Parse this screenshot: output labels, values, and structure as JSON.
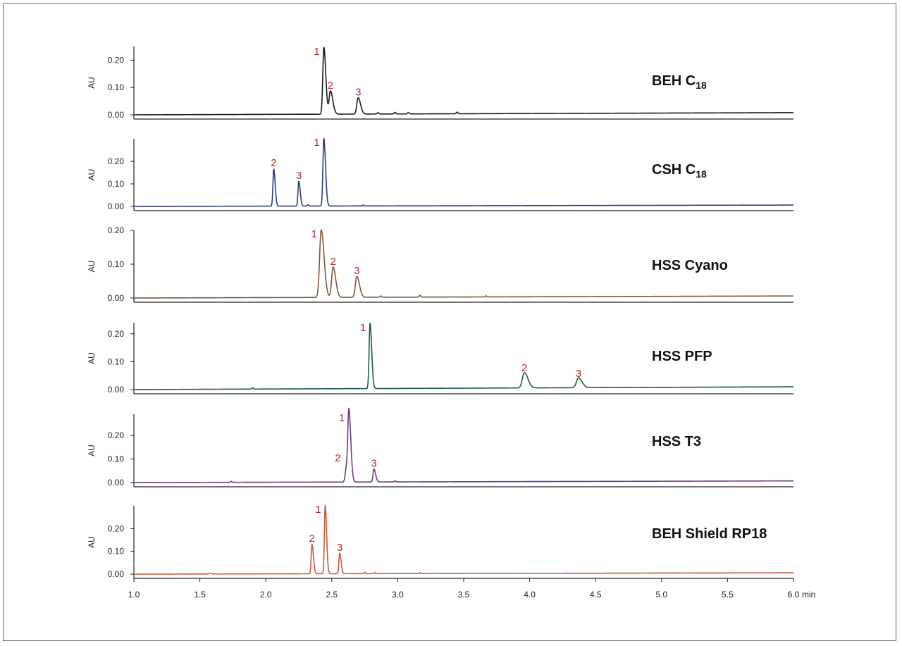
{
  "chart_data": {
    "type": "line",
    "xlim": [
      1.0,
      6.0
    ],
    "x_ticks": [
      "1.0",
      "1.5",
      "2.0",
      "2.5",
      "3.0",
      "3.5",
      "4.0",
      "4.5",
      "5.0",
      "5.5",
      "6.0"
    ],
    "x_unit": "min",
    "ylabel": "AU",
    "y_ticks": [
      "0.00",
      "0.10",
      "0.20"
    ],
    "peak_label_color": "#b3272f",
    "panels": [
      {
        "name": "BEH C18",
        "name_main": "BEH C",
        "name_sub": "18",
        "color": "#1a1a1a",
        "ymax": 0.25,
        "baseline_drift": 0.008,
        "peaks": [
          {
            "label": "1",
            "t": 2.44,
            "h": 0.245,
            "w": 0.008
          },
          {
            "label": "2",
            "t": 2.49,
            "h": 0.085,
            "w": 0.01
          },
          {
            "label": "3",
            "t": 2.7,
            "h": 0.06,
            "w": 0.01
          }
        ],
        "minor_peaks": [
          [
            2.85,
            0.005
          ],
          [
            2.98,
            0.006
          ],
          [
            3.08,
            0.005
          ],
          [
            3.45,
            0.006
          ]
        ]
      },
      {
        "name": "CSH C18",
        "name_main": "CSH C",
        "name_sub": "18",
        "color": "#2d3c7a",
        "ymax": 0.3,
        "baseline_drift": 0.006,
        "peaks": [
          {
            "label": "2",
            "t": 2.06,
            "h": 0.165,
            "w": 0.006
          },
          {
            "label": "3",
            "t": 2.25,
            "h": 0.11,
            "w": 0.006
          },
          {
            "label": "1",
            "t": 2.44,
            "h": 0.3,
            "w": 0.007
          }
        ],
        "minor_peaks": [
          [
            2.32,
            0.006
          ],
          [
            2.74,
            0.004
          ]
        ]
      },
      {
        "name": "HSS Cyano",
        "name_main": "HSS Cyano",
        "name_sub": "",
        "color": "#7a5a3c",
        "ymax": 0.2,
        "baseline_drift": 0.006,
        "peaks": [
          {
            "label": "1",
            "t": 2.42,
            "h": 0.2,
            "w": 0.012
          },
          {
            "label": "2",
            "t": 2.51,
            "h": 0.09,
            "w": 0.011
          },
          {
            "label": "3",
            "t": 2.69,
            "h": 0.062,
            "w": 0.011
          }
        ],
        "minor_peaks": [
          [
            2.87,
            0.004
          ],
          [
            3.17,
            0.005
          ],
          [
            3.67,
            0.003
          ]
        ]
      },
      {
        "name": "HSS PFP",
        "name_main": "HSS PFP",
        "name_sub": "",
        "color": "#1e5a3c",
        "ymax": 0.24,
        "baseline_drift": 0.01,
        "peaks": [
          {
            "label": "1",
            "t": 2.79,
            "h": 0.235,
            "w": 0.007
          },
          {
            "label": "2",
            "t": 3.96,
            "h": 0.055,
            "w": 0.015
          },
          {
            "label": "3",
            "t": 4.37,
            "h": 0.035,
            "w": 0.015
          }
        ],
        "minor_peaks": [
          [
            1.9,
            0.004
          ]
        ]
      },
      {
        "name": "HSS T3",
        "name_main": "HSS T3",
        "name_sub": "",
        "color": "#6b3d82",
        "ymax": 0.29,
        "baseline_drift": 0.007,
        "peaks": [
          {
            "label": "2",
            "t": 2.61,
            "h": 0.06,
            "w": 0.008
          },
          {
            "label": "1",
            "t": 2.63,
            "h": 0.29,
            "w": 0.008
          },
          {
            "label": "3",
            "t": 2.82,
            "h": 0.055,
            "w": 0.007
          }
        ],
        "minor_peaks": [
          [
            1.74,
            0.004
          ],
          [
            2.98,
            0.004
          ]
        ]
      },
      {
        "name": "BEH Shield RP18",
        "name_main": "BEH Shield RP18",
        "name_sub": "",
        "color": "#c85a3c",
        "ymax": 0.3,
        "baseline_drift": 0.006,
        "peaks": [
          {
            "label": "2",
            "t": 2.35,
            "h": 0.13,
            "w": 0.006
          },
          {
            "label": "1",
            "t": 2.45,
            "h": 0.3,
            "w": 0.006
          },
          {
            "label": "3",
            "t": 2.56,
            "h": 0.09,
            "w": 0.006
          }
        ],
        "minor_peaks": [
          [
            1.58,
            0.004
          ],
          [
            2.75,
            0.006
          ],
          [
            2.83,
            0.005
          ],
          [
            3.17,
            0.004
          ]
        ]
      }
    ]
  }
}
